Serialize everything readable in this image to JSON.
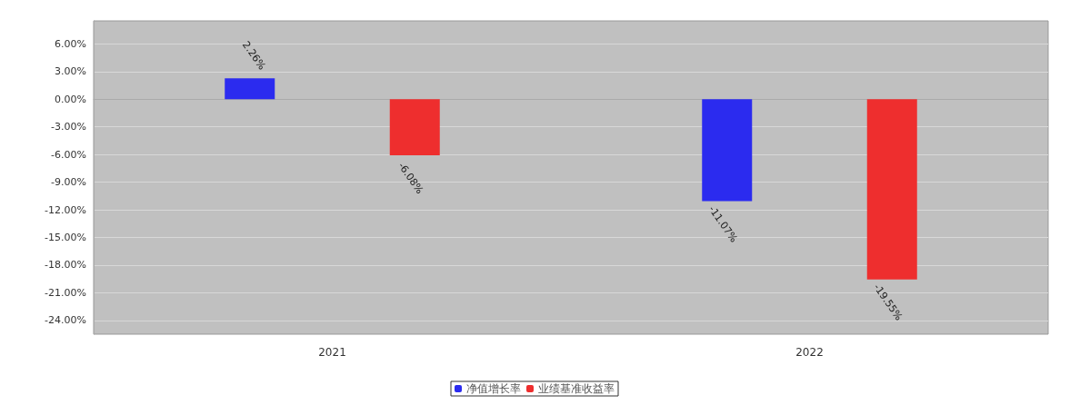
{
  "chart_data": {
    "type": "bar",
    "categories": [
      "2021",
      "2022"
    ],
    "series": [
      {
        "name": "净值增长率",
        "color": "#2b2bef",
        "values": [
          2.26,
          -11.07
        ],
        "value_labels": [
          "2.26%",
          "-11.07%"
        ]
      },
      {
        "name": "业绩基准收益率",
        "color": "#ee2e2e",
        "values": [
          -6.08,
          -19.55
        ],
        "value_labels": [
          "-6.08%",
          "-19.55%"
        ]
      }
    ],
    "ylim": [
      -25.5,
      8.5
    ],
    "yticks": [
      {
        "value": -24,
        "label": "-24.00%"
      },
      {
        "value": -21,
        "label": "-21.00%"
      },
      {
        "value": -18,
        "label": "-18.00%"
      },
      {
        "value": -15,
        "label": "-15.00%"
      },
      {
        "value": -12,
        "label": "-12.00%"
      },
      {
        "value": -9,
        "label": "-9.00%"
      },
      {
        "value": -6,
        "label": "-6.00%"
      },
      {
        "value": -3,
        "label": "-3.00%"
      },
      {
        "value": 0,
        "label": "0.00%"
      },
      {
        "value": 3,
        "label": "3.00%"
      },
      {
        "value": 6,
        "label": "6.00%"
      }
    ],
    "grid": "y",
    "legend": "bottom"
  }
}
